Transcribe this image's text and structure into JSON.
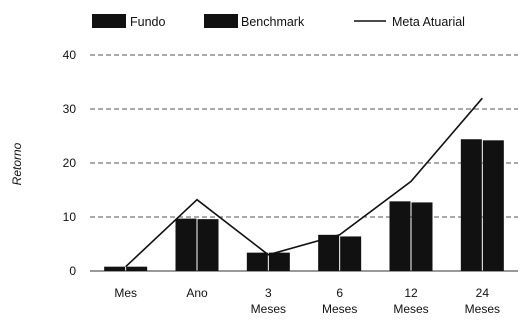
{
  "chart_data": {
    "type": "bar",
    "title": "",
    "xlabel": "",
    "ylabel": "Retorno",
    "ylim": [
      0,
      40
    ],
    "yticks": [
      0,
      10,
      20,
      30,
      40
    ],
    "grid": true,
    "legend_position": "top",
    "categories": [
      [
        "Mes"
      ],
      [
        "Ano"
      ],
      [
        "3",
        "Meses"
      ],
      [
        "6",
        "Meses"
      ],
      [
        "12",
        "Meses"
      ],
      [
        "24",
        "Meses"
      ]
    ],
    "series": [
      {
        "name": "Fundo",
        "kind": "bar",
        "color": "#111111",
        "values": [
          0.8,
          9.7,
          3.4,
          6.7,
          12.9,
          24.4
        ]
      },
      {
        "name": "Benchmark",
        "kind": "bar",
        "color": "#111111",
        "values": [
          0.8,
          9.6,
          3.4,
          6.4,
          12.7,
          24.2
        ]
      },
      {
        "name": "Meta Atuarial",
        "kind": "line",
        "color": "#111111",
        "values": [
          0.8,
          13.2,
          3.0,
          6.7,
          16.6,
          32.0
        ]
      }
    ]
  }
}
